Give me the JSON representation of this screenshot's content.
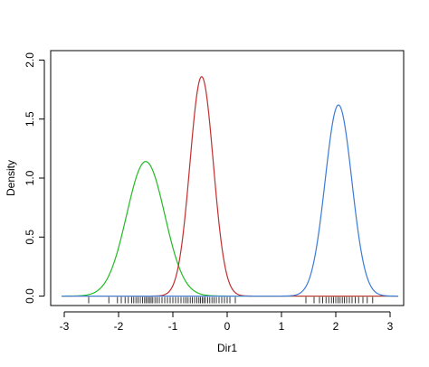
{
  "chart_data": {
    "type": "line",
    "title": "",
    "xlabel": "Dir1",
    "ylabel": "Density",
    "xlim": [
      -3.25,
      3.25
    ],
    "ylim": [
      -0.08,
      2.08
    ],
    "x_ticks": [
      "-3",
      "-2",
      "-1",
      "0",
      "1",
      "2",
      "3"
    ],
    "y_ticks": [
      "0.0",
      "0.5",
      "1.0",
      "1.5",
      "2.0"
    ],
    "grid": false,
    "legend": "none",
    "x_range": [
      -3.05,
      3.15
    ],
    "series": [
      {
        "color": "#22bb22",
        "mean": -1.5,
        "sd": 0.35,
        "peak": 1.14
      },
      {
        "color": "#c03030",
        "mean": -0.47,
        "sd": 0.215,
        "peak": 1.86
      },
      {
        "color": "#3b7ad6",
        "mean": 2.05,
        "sd": 0.245,
        "peak": 1.62
      }
    ],
    "rug": [
      -2.55,
      -2.18,
      -2.02,
      -1.95,
      -1.88,
      -1.82,
      -1.76,
      -1.72,
      -1.68,
      -1.64,
      -1.6,
      -1.56,
      -1.52,
      -1.49,
      -1.46,
      -1.43,
      -1.4,
      -1.37,
      -1.33,
      -1.29,
      -1.25,
      -1.2,
      -1.15,
      -1.1,
      -1.05,
      -1.0,
      -0.95,
      -0.9,
      -0.85,
      -0.8,
      -0.76,
      -0.72,
      -0.68,
      -0.64,
      -0.6,
      -0.56,
      -0.52,
      -0.49,
      -0.46,
      -0.43,
      -0.4,
      -0.36,
      -0.32,
      -0.28,
      -0.24,
      -0.2,
      -0.15,
      -0.1,
      -0.05,
      0.0,
      0.05,
      0.15,
      1.45,
      1.6,
      1.7,
      1.76,
      1.82,
      1.87,
      1.92,
      1.96,
      2.0,
      2.04,
      2.08,
      2.12,
      2.16,
      2.2,
      2.25,
      2.3,
      2.36,
      2.42,
      2.5,
      2.58,
      2.68
    ]
  }
}
